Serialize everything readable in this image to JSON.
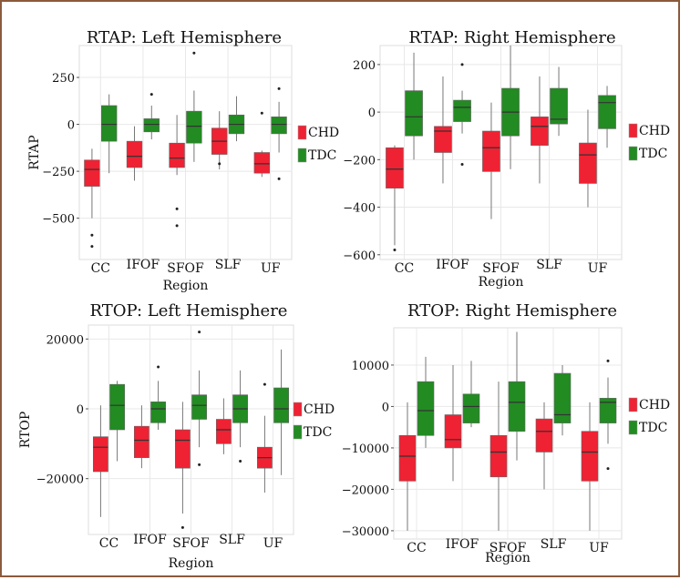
{
  "colors": {
    "chd": "#ee2233",
    "tdc": "#228b22",
    "panel_bg": "#ffffff",
    "grid": "#e8e8e8",
    "border": "#8b5a3c"
  },
  "legend_labels": {
    "chd": "CHD",
    "tdc": "TDC"
  },
  "chart_data": [
    {
      "type": "boxplot",
      "title": "RTAP: Left Hemisphere",
      "xlabel": "Region",
      "ylabel": "RTAP",
      "ylim": [
        -720,
        420
      ],
      "yticks": [
        250,
        0,
        -250,
        -500
      ],
      "ytick_labels": [
        "250",
        "0",
        "−250",
        "−500"
      ],
      "categories": [
        "CC",
        "IFOF",
        "SFOF",
        "SLF",
        "UF"
      ],
      "series": [
        {
          "name": "CHD",
          "boxes": [
            {
              "min": -500,
              "q1": -330,
              "median": -240,
              "q3": -190,
              "max": -130,
              "outliers": [
                -590,
                -650
              ]
            },
            {
              "min": -300,
              "q1": -230,
              "median": -170,
              "q3": -90,
              "max": -10,
              "outliers": []
            },
            {
              "min": -270,
              "q1": -230,
              "median": -180,
              "q3": -100,
              "max": 50,
              "outliers": [
                -450,
                -540
              ]
            },
            {
              "min": -240,
              "q1": -160,
              "median": -90,
              "q3": -20,
              "max": 70,
              "outliers": [
                -210
              ]
            },
            {
              "min": -280,
              "q1": -260,
              "median": -210,
              "q3": -150,
              "max": -140,
              "outliers": [
                60
              ]
            }
          ]
        },
        {
          "name": "TDC",
          "boxes": [
            {
              "min": -260,
              "q1": -90,
              "median": 0,
              "q3": 100,
              "max": 160,
              "outliers": []
            },
            {
              "min": -80,
              "q1": -40,
              "median": 0,
              "q3": 30,
              "max": 100,
              "outliers": [
                160
              ]
            },
            {
              "min": -200,
              "q1": -100,
              "median": -10,
              "q3": 70,
              "max": 180,
              "outliers": [
                380
              ]
            },
            {
              "min": -90,
              "q1": -50,
              "median": 0,
              "q3": 50,
              "max": 150,
              "outliers": []
            },
            {
              "min": -150,
              "q1": -50,
              "median": 0,
              "q3": 40,
              "max": 120,
              "outliers": [
                190,
                -290
              ]
            }
          ]
        }
      ]
    },
    {
      "type": "boxplot",
      "title": "RTAP: Right Hemisphere",
      "xlabel": "Region",
      "ylabel": "",
      "ylim": [
        -620,
        280
      ],
      "yticks": [
        200,
        0,
        -200,
        -400,
        -600
      ],
      "ytick_labels": [
        "200",
        "0",
        "−200",
        "−400",
        "−600"
      ],
      "categories": [
        "CC",
        "IFOF",
        "SFOF",
        "SLF",
        "UF"
      ],
      "series": [
        {
          "name": "CHD",
          "boxes": [
            {
              "min": -560,
              "q1": -320,
              "median": -240,
              "q3": -150,
              "max": -140,
              "outliers": [
                -580
              ]
            },
            {
              "min": -300,
              "q1": -170,
              "median": -80,
              "q3": -60,
              "max": 150,
              "outliers": []
            },
            {
              "min": -450,
              "q1": -250,
              "median": -150,
              "q3": -80,
              "max": 40,
              "outliers": []
            },
            {
              "min": -300,
              "q1": -140,
              "median": -60,
              "q3": -20,
              "max": 150,
              "outliers": []
            },
            {
              "min": -400,
              "q1": -300,
              "median": -180,
              "q3": -130,
              "max": 10,
              "outliers": []
            }
          ]
        },
        {
          "name": "TDC",
          "boxes": [
            {
              "min": -200,
              "q1": -100,
              "median": -20,
              "q3": 90,
              "max": 250,
              "outliers": []
            },
            {
              "min": -90,
              "q1": -40,
              "median": 20,
              "q3": 50,
              "max": 90,
              "outliers": [
                200,
                -220
              ]
            },
            {
              "min": -240,
              "q1": -100,
              "median": 0,
              "q3": 100,
              "max": 280,
              "outliers": []
            },
            {
              "min": -100,
              "q1": -50,
              "median": -30,
              "q3": 100,
              "max": 190,
              "outliers": []
            },
            {
              "min": -150,
              "q1": -70,
              "median": 40,
              "q3": 70,
              "max": 110,
              "outliers": []
            }
          ]
        }
      ]
    },
    {
      "type": "boxplot",
      "title": "RTOP: Left Hemisphere",
      "xlabel": "Region",
      "ylabel": "RTOP",
      "ylim": [
        -36000,
        24000
      ],
      "yticks": [
        20000,
        0,
        -20000
      ],
      "ytick_labels": [
        "20000",
        "0",
        "−20000"
      ],
      "categories": [
        "CC",
        "IFOF",
        "SFOF",
        "SLF",
        "UF"
      ],
      "series": [
        {
          "name": "CHD",
          "boxes": [
            {
              "min": -31000,
              "q1": -18000,
              "median": -11000,
              "q3": -8000,
              "max": 1000,
              "outliers": []
            },
            {
              "min": -17000,
              "q1": -14000,
              "median": -9000,
              "q3": -5000,
              "max": 1000,
              "outliers": []
            },
            {
              "min": -30000,
              "q1": -17000,
              "median": -9000,
              "q3": -6000,
              "max": 2000,
              "outliers": [
                -34000
              ]
            },
            {
              "min": -13000,
              "q1": -10000,
              "median": -6000,
              "q3": -3000,
              "max": 3000,
              "outliers": []
            },
            {
              "min": -24000,
              "q1": -17000,
              "median": -14000,
              "q3": -11000,
              "max": -2000,
              "outliers": [
                7000
              ]
            }
          ]
        },
        {
          "name": "TDC",
          "boxes": [
            {
              "min": -15000,
              "q1": -6000,
              "median": 1000,
              "q3": 7000,
              "max": 8000,
              "outliers": []
            },
            {
              "min": -6000,
              "q1": -4000,
              "median": 0,
              "q3": 2000,
              "max": 8000,
              "outliers": [
                12000
              ]
            },
            {
              "min": -11000,
              "q1": -3000,
              "median": 1000,
              "q3": 4000,
              "max": 11000,
              "outliers": [
                22000,
                -16000
              ]
            },
            {
              "min": -11000,
              "q1": -4000,
              "median": 0,
              "q3": 4000,
              "max": 11000,
              "outliers": [
                -15000
              ]
            },
            {
              "min": -19000,
              "q1": -4000,
              "median": 0,
              "q3": 6000,
              "max": 17000,
              "outliers": []
            }
          ]
        }
      ]
    },
    {
      "type": "boxplot",
      "title": "RTOP: Right Hemisphere",
      "xlabel": "Region",
      "ylabel": "",
      "ylim": [
        -32000,
        19000
      ],
      "yticks": [
        10000,
        0,
        -10000,
        -20000,
        -30000
      ],
      "ytick_labels": [
        "10000",
        "0",
        "−10000",
        "−20000",
        "−30000"
      ],
      "categories": [
        "CC",
        "IFOF",
        "SFOF",
        "SLF",
        "UF"
      ],
      "series": [
        {
          "name": "CHD",
          "boxes": [
            {
              "min": -30000,
              "q1": -18000,
              "median": -12000,
              "q3": -7000,
              "max": 1000,
              "outliers": []
            },
            {
              "min": -18000,
              "q1": -10000,
              "median": -8000,
              "q3": -2000,
              "max": 10000,
              "outliers": []
            },
            {
              "min": -30000,
              "q1": -17000,
              "median": -11000,
              "q3": -7000,
              "max": 6000,
              "outliers": []
            },
            {
              "min": -20000,
              "q1": -11000,
              "median": -6000,
              "q3": -3000,
              "max": 1000,
              "outliers": []
            },
            {
              "min": -30000,
              "q1": -18000,
              "median": -11000,
              "q3": -6000,
              "max": 1000,
              "outliers": []
            }
          ]
        },
        {
          "name": "TDC",
          "boxes": [
            {
              "min": -10000,
              "q1": -7000,
              "median": -1000,
              "q3": 6000,
              "max": 12000,
              "outliers": []
            },
            {
              "min": -5000,
              "q1": -4000,
              "median": 0,
              "q3": 3000,
              "max": 11000,
              "outliers": []
            },
            {
              "min": -13000,
              "q1": -6000,
              "median": 1000,
              "q3": 6000,
              "max": 18000,
              "outliers": []
            },
            {
              "min": -7000,
              "q1": -4000,
              "median": -2000,
              "q3": 8000,
              "max": 10000,
              "outliers": []
            },
            {
              "min": -9000,
              "q1": -4000,
              "median": 1000,
              "q3": 2000,
              "max": 7000,
              "outliers": [
                11000,
                -15000
              ]
            }
          ]
        }
      ]
    }
  ]
}
